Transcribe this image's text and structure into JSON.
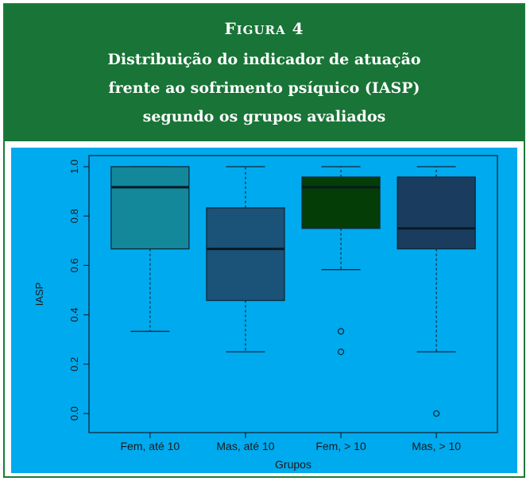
{
  "figure": {
    "label_cap": "F",
    "label_rest": "IGURA",
    "label_num": "4",
    "title_lines": [
      "Distribuição do indicador de atuação",
      "frente ao sofrimento psíquico (IASP)",
      "segundo os grupos avaliados"
    ]
  },
  "colors": {
    "header_bg": "#197437",
    "plot_bg": "#00aaee",
    "box_fills": [
      "#13889b",
      "#1b5277",
      "#053d06",
      "#1a3c5e"
    ],
    "line": "#0d2a3a"
  },
  "chart_data": {
    "type": "boxplot",
    "xlabel": "Grupos",
    "ylabel": "IASP",
    "ylim": [
      0,
      1
    ],
    "yticks": [
      "0.0",
      "0.2",
      "0.4",
      "0.6",
      "0.8",
      "1.0"
    ],
    "categories": [
      "Fem, até 10",
      "Mas, até 10",
      "Fem, > 10",
      "Mas, > 10"
    ],
    "boxes": [
      {
        "whisker_low": 0.333,
        "q1": 0.667,
        "median": 0.917,
        "q3": 1.0,
        "whisker_high": 1.0,
        "outliers": []
      },
      {
        "whisker_low": 0.25,
        "q1": 0.458,
        "median": 0.667,
        "q3": 0.833,
        "whisker_high": 1.0,
        "outliers": []
      },
      {
        "whisker_low": 0.583,
        "q1": 0.75,
        "median": 0.917,
        "q3": 0.958,
        "whisker_high": 1.0,
        "outliers": [
          0.333,
          0.25
        ]
      },
      {
        "whisker_low": 0.25,
        "q1": 0.667,
        "median": 0.75,
        "q3": 0.958,
        "whisker_high": 1.0,
        "outliers": [
          0.0
        ]
      }
    ]
  }
}
